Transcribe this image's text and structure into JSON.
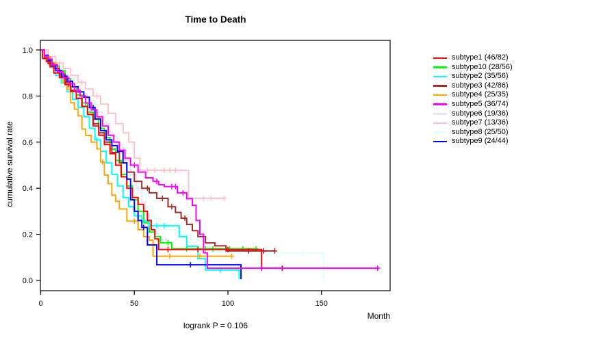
{
  "figure": {
    "title": "Time to Death",
    "x_axis_label": "Month",
    "y_axis_label": "cumulative survival rate",
    "footer": "logrank P = 0.106"
  },
  "chart_data": {
    "type": "line",
    "variant": "kaplan-meier-step",
    "title": "Time to Death",
    "xlabel": "Month",
    "ylabel": "cumulative survival rate",
    "annotation": "logrank P = 0.106",
    "xlim": [
      0,
      187
    ],
    "ylim": [
      0,
      1.0
    ],
    "x_ticks": [
      0,
      50,
      100,
      150
    ],
    "y_ticks": [
      "0.0",
      "0.2",
      "0.4",
      "0.6",
      "0.8",
      "1.0"
    ],
    "grid": false,
    "legend_position": "right-outside",
    "series": [
      {
        "name": "subtype1",
        "label": "subtype1 (46/82)",
        "color": "#FF0000",
        "z": 8,
        "points": [
          [
            0,
            1
          ],
          [
            1,
            0.963
          ],
          [
            3,
            0.95
          ],
          [
            5,
            0.927
          ],
          [
            7,
            0.9
          ],
          [
            10,
            0.88
          ],
          [
            13,
            0.85
          ],
          [
            16,
            0.82
          ],
          [
            19,
            0.79
          ],
          [
            22,
            0.755
          ],
          [
            25,
            0.72
          ],
          [
            28,
            0.67
          ],
          [
            31,
            0.63
          ],
          [
            34,
            0.59
          ],
          [
            37,
            0.55
          ],
          [
            40,
            0.5
          ],
          [
            43,
            0.45
          ],
          [
            46,
            0.4
          ],
          [
            49,
            0.36
          ],
          [
            52,
            0.33
          ],
          [
            55,
            0.3
          ],
          [
            57,
            0.26
          ],
          [
            59,
            0.22
          ],
          [
            61,
            0.18
          ],
          [
            63,
            0.134
          ],
          [
            118,
            0.134
          ],
          [
            118,
            0.053
          ],
          [
            129,
            0.053
          ]
        ],
        "censors": [
          15,
          68,
          84,
          100,
          129
        ]
      },
      {
        "name": "subtype10",
        "label": "subtype10 (28/56)",
        "color": "#00FF00",
        "z": 4,
        "points": [
          [
            0,
            1
          ],
          [
            2,
            0.964
          ],
          [
            4,
            0.946
          ],
          [
            7,
            0.93
          ],
          [
            10,
            0.91
          ],
          [
            13,
            0.875
          ],
          [
            16,
            0.84
          ],
          [
            19,
            0.805
          ],
          [
            22,
            0.77
          ],
          [
            25,
            0.73
          ],
          [
            28,
            0.7
          ],
          [
            31,
            0.66
          ],
          [
            34,
            0.62
          ],
          [
            37,
            0.57
          ],
          [
            40,
            0.52
          ],
          [
            43,
            0.46
          ],
          [
            46,
            0.41
          ],
          [
            49,
            0.35
          ],
          [
            52,
            0.3
          ],
          [
            55,
            0.25
          ],
          [
            58,
            0.21
          ],
          [
            61,
            0.19
          ],
          [
            64,
            0.163
          ],
          [
            70,
            0.137
          ],
          [
            115,
            0.137
          ]
        ],
        "censors": [
          24,
          68,
          78,
          88,
          92,
          101,
          108,
          115
        ]
      },
      {
        "name": "subtype2",
        "label": "subtype2 (35/56)",
        "color": "#00FFFF",
        "z": 5,
        "points": [
          [
            0,
            1
          ],
          [
            2,
            0.964
          ],
          [
            5,
            0.93
          ],
          [
            8,
            0.89
          ],
          [
            11,
            0.857
          ],
          [
            14,
            0.82
          ],
          [
            17,
            0.786
          ],
          [
            20,
            0.75
          ],
          [
            23,
            0.71
          ],
          [
            26,
            0.66
          ],
          [
            29,
            0.61
          ],
          [
            32,
            0.56
          ],
          [
            35,
            0.51
          ],
          [
            38,
            0.46
          ],
          [
            41,
            0.41
          ],
          [
            44,
            0.36
          ],
          [
            47,
            0.32
          ],
          [
            50,
            0.28
          ],
          [
            54,
            0.257
          ],
          [
            58,
            0.237
          ],
          [
            70,
            0.237
          ],
          [
            74,
            0.19
          ],
          [
            78,
            0.148
          ],
          [
            84,
            0.095
          ],
          [
            88,
            0.045
          ],
          [
            106,
            0.045
          ],
          [
            106,
            0.005
          ]
        ],
        "censors": [
          30,
          52,
          62,
          66,
          96
        ]
      },
      {
        "name": "subtype3",
        "label": "subtype3 (42/86)",
        "color": "#A52A2A",
        "z": 7,
        "points": [
          [
            0,
            1
          ],
          [
            2,
            0.965
          ],
          [
            4,
            0.94
          ],
          [
            7,
            0.92
          ],
          [
            10,
            0.895
          ],
          [
            13,
            0.86
          ],
          [
            16,
            0.825
          ],
          [
            19,
            0.79
          ],
          [
            22,
            0.755
          ],
          [
            25,
            0.72
          ],
          [
            28,
            0.68
          ],
          [
            31,
            0.64
          ],
          [
            34,
            0.6
          ],
          [
            38,
            0.555
          ],
          [
            42,
            0.51
          ],
          [
            46,
            0.47
          ],
          [
            50,
            0.43
          ],
          [
            54,
            0.4
          ],
          [
            58,
            0.38
          ],
          [
            62,
            0.356
          ],
          [
            68,
            0.32
          ],
          [
            72,
            0.295
          ],
          [
            75,
            0.27
          ],
          [
            78,
            0.243
          ],
          [
            81,
            0.216
          ],
          [
            84,
            0.19
          ],
          [
            88,
            0.163
          ],
          [
            93,
            0.15
          ],
          [
            99,
            0.128
          ],
          [
            125,
            0.128
          ]
        ],
        "censors": [
          12,
          57,
          65,
          70,
          77,
          111,
          119,
          125
        ]
      },
      {
        "name": "subtype4",
        "label": "subtype4 (25/35)",
        "color": "#FFA500",
        "z": 6,
        "points": [
          [
            0,
            1
          ],
          [
            2,
            0.971
          ],
          [
            5,
            0.943
          ],
          [
            8,
            0.914
          ],
          [
            10,
            0.886
          ],
          [
            12,
            0.857
          ],
          [
            14,
            0.829
          ],
          [
            16,
            0.771
          ],
          [
            18,
            0.743
          ],
          [
            20,
            0.714
          ],
          [
            22,
            0.657
          ],
          [
            24,
            0.629
          ],
          [
            27,
            0.6
          ],
          [
            30,
            0.571
          ],
          [
            32,
            0.514
          ],
          [
            34,
            0.457
          ],
          [
            36,
            0.42
          ],
          [
            38,
            0.37
          ],
          [
            40,
            0.343
          ],
          [
            42,
            0.31
          ],
          [
            46,
            0.257
          ],
          [
            52,
            0.22
          ],
          [
            55,
            0.19
          ],
          [
            58,
            0.175
          ],
          [
            60,
            0.105
          ],
          [
            102,
            0.105
          ]
        ],
        "censors": [
          33,
          50,
          69,
          85,
          102
        ]
      },
      {
        "name": "subtype5",
        "label": "subtype5 (36/74)",
        "color": "#FF00FF",
        "z": 10,
        "points": [
          [
            0,
            1
          ],
          [
            2,
            0.973
          ],
          [
            4,
            0.96
          ],
          [
            6,
            0.935
          ],
          [
            9,
            0.905
          ],
          [
            12,
            0.88
          ],
          [
            15,
            0.853
          ],
          [
            18,
            0.825
          ],
          [
            21,
            0.8
          ],
          [
            24,
            0.77
          ],
          [
            27,
            0.74
          ],
          [
            30,
            0.71
          ],
          [
            33,
            0.67
          ],
          [
            36,
            0.63
          ],
          [
            39,
            0.6
          ],
          [
            42,
            0.565
          ],
          [
            45,
            0.53
          ],
          [
            48,
            0.5
          ],
          [
            52,
            0.47
          ],
          [
            56,
            0.445
          ],
          [
            60,
            0.43
          ],
          [
            63,
            0.415
          ],
          [
            66,
            0.407
          ],
          [
            73,
            0.38
          ],
          [
            78,
            0.355
          ],
          [
            81,
            0.326
          ],
          [
            83,
            0.26
          ],
          [
            85,
            0.2
          ],
          [
            87,
            0.12
          ],
          [
            89,
            0.053
          ],
          [
            180,
            0.053
          ]
        ],
        "censors": [
          20,
          50,
          62,
          70,
          72,
          76,
          118,
          180
        ]
      },
      {
        "name": "subtype6",
        "label": "subtype6 (19/36)",
        "color": "#E6E6FA",
        "z": 2,
        "points": [
          [
            0,
            1
          ],
          [
            3,
            0.97
          ],
          [
            6,
            0.944
          ],
          [
            9,
            0.917
          ],
          [
            12,
            0.89
          ],
          [
            15,
            0.86
          ],
          [
            18,
            0.83
          ],
          [
            21,
            0.805
          ],
          [
            25,
            0.78
          ],
          [
            29,
            0.73
          ],
          [
            33,
            0.68
          ],
          [
            37,
            0.625
          ],
          [
            41,
            0.575
          ],
          [
            45,
            0.52
          ],
          [
            48,
            0.46
          ],
          [
            51,
            0.4
          ],
          [
            54,
            0.34
          ],
          [
            56,
            0.29
          ],
          [
            58,
            0.245
          ],
          [
            60,
            0.21
          ],
          [
            62,
            0.175
          ],
          [
            67,
            0.175
          ]
        ],
        "censors": [
          12,
          35,
          44,
          52,
          67
        ]
      },
      {
        "name": "subtype7",
        "label": "subtype7 (13/36)",
        "color": "#FFC0CB",
        "z": 3,
        "points": [
          [
            0,
            1
          ],
          [
            4,
            0.971
          ],
          [
            8,
            0.943
          ],
          [
            12,
            0.92
          ],
          [
            16,
            0.89
          ],
          [
            20,
            0.86
          ],
          [
            24,
            0.83
          ],
          [
            28,
            0.8
          ],
          [
            32,
            0.765
          ],
          [
            36,
            0.725
          ],
          [
            40,
            0.68
          ],
          [
            44,
            0.64
          ],
          [
            47,
            0.6
          ],
          [
            50,
            0.53
          ],
          [
            53,
            0.478
          ],
          [
            79,
            0.478
          ],
          [
            79,
            0.356
          ],
          [
            98,
            0.356
          ]
        ],
        "censors": [
          10,
          22,
          30,
          57,
          61,
          66,
          69,
          72,
          87,
          91,
          98
        ]
      },
      {
        "name": "subtype8",
        "label": "subtype8 (25/50)",
        "color": "#E0FFFF",
        "z": 1,
        "points": [
          [
            0,
            1
          ],
          [
            2,
            0.96
          ],
          [
            5,
            0.93
          ],
          [
            8,
            0.9
          ],
          [
            11,
            0.87
          ],
          [
            14,
            0.84
          ],
          [
            17,
            0.81
          ],
          [
            20,
            0.78
          ],
          [
            24,
            0.74
          ],
          [
            28,
            0.7
          ],
          [
            32,
            0.65
          ],
          [
            36,
            0.6
          ],
          [
            40,
            0.55
          ],
          [
            44,
            0.5
          ],
          [
            48,
            0.44
          ],
          [
            52,
            0.38
          ],
          [
            56,
            0.32
          ],
          [
            60,
            0.27
          ],
          [
            64,
            0.24
          ],
          [
            68,
            0.22
          ],
          [
            72,
            0.2
          ],
          [
            80,
            0.178
          ],
          [
            90,
            0.12
          ],
          [
            151,
            0.12
          ],
          [
            151,
            0.005
          ]
        ],
        "censors": [
          40,
          75,
          95,
          120,
          140
        ]
      },
      {
        "name": "subtype9",
        "label": "subtype9 (24/44)",
        "color": "#0000FF",
        "z": 9,
        "points": [
          [
            0,
            1
          ],
          [
            2,
            0.977
          ],
          [
            4,
            0.955
          ],
          [
            6,
            0.932
          ],
          [
            8,
            0.91
          ],
          [
            11,
            0.886
          ],
          [
            14,
            0.864
          ],
          [
            17,
            0.84
          ],
          [
            20,
            0.818
          ],
          [
            23,
            0.795
          ],
          [
            26,
            0.75
          ],
          [
            29,
            0.7
          ],
          [
            32,
            0.65
          ],
          [
            35,
            0.61
          ],
          [
            38,
            0.585
          ],
          [
            41,
            0.56
          ],
          [
            44,
            0.51
          ],
          [
            46,
            0.44
          ],
          [
            48,
            0.35
          ],
          [
            50,
            0.3
          ],
          [
            52,
            0.26
          ],
          [
            54,
            0.23
          ],
          [
            57,
            0.154
          ],
          [
            62,
            0.068
          ],
          [
            107,
            0.068
          ],
          [
            107,
            0.005
          ]
        ],
        "censors": [
          28,
          55,
          80
        ]
      }
    ]
  }
}
